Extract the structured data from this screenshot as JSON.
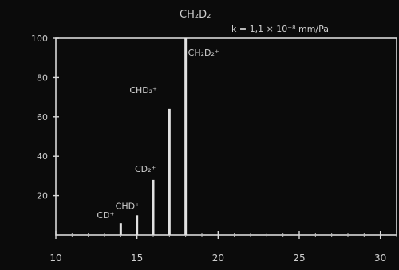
{
  "chart_data": {
    "type": "bar",
    "title": "CH₂D₂",
    "annotation": "k = 1,1 × 10⁻⁸ mm/Pa",
    "xlabel": "",
    "ylabel": "",
    "xlim": [
      10,
      31
    ],
    "ylim": [
      0,
      100
    ],
    "x_ticks": [
      10,
      15,
      20,
      25,
      30
    ],
    "y_ticks": [
      20,
      40,
      60,
      80,
      100
    ],
    "grid": false,
    "series": [
      {
        "points": [
          {
            "x": 14,
            "y": 6,
            "label": "CD⁺"
          },
          {
            "x": 15,
            "y": 10,
            "label": "CHD⁺"
          },
          {
            "x": 16,
            "y": 28,
            "label": "CD₂⁺"
          },
          {
            "x": 17,
            "y": 64,
            "label": "CHD₂⁺"
          },
          {
            "x": 18,
            "y": 100,
            "label": "CH₂D₂⁺"
          }
        ]
      }
    ]
  }
}
